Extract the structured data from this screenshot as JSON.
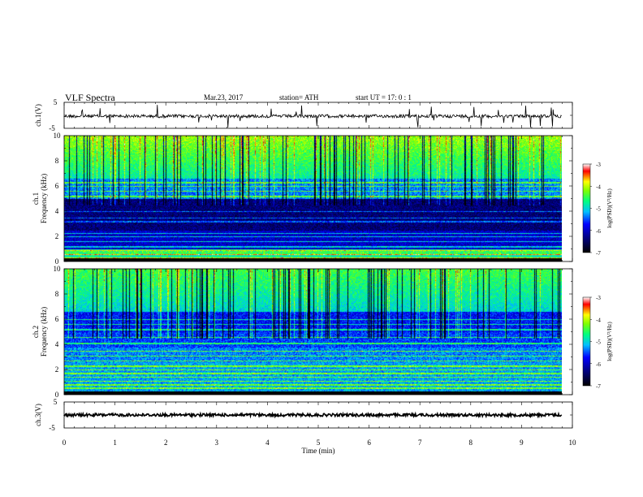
{
  "header": {
    "title": "VLF  Spectra",
    "date": "Mar.23, 2017",
    "station": "station= ATH",
    "start": "start  UT  =    17: 0   : 1"
  },
  "chart_data": [
    {
      "type": "line",
      "name": "ch1-waveform",
      "ylabel": "ch.1(V)",
      "ylim": [
        -5,
        5
      ],
      "yticks": [
        "5",
        "-5"
      ],
      "xlim": [
        0,
        10
      ],
      "baseline": 0
    },
    {
      "type": "heatmap",
      "name": "ch1-spectrogram",
      "ylabel": "ch.1\nFrequency  (kHz)",
      "ylabel_line1": "ch.1",
      "ylabel_line2": "Frequency  (kHz)",
      "ylim": [
        0,
        10
      ],
      "yticks": [
        "0",
        "2",
        "4",
        "6",
        "8",
        "10"
      ],
      "xlim": [
        0,
        10
      ],
      "colorbar": {
        "label": "log(PSD)(V²/Hz)",
        "range": [
          -7,
          -3
        ],
        "ticks": [
          "-3",
          "-4",
          "-5",
          "-6",
          "-7"
        ]
      }
    },
    {
      "type": "heatmap",
      "name": "ch2-spectrogram",
      "ylabel_line1": "ch.2",
      "ylabel_line2": "Frequency  (kHz)",
      "ylim": [
        0,
        10
      ],
      "yticks": [
        "0",
        "2",
        "4",
        "6",
        "8",
        "10"
      ],
      "xlim": [
        0,
        10
      ],
      "colorbar": {
        "label": "log(PSD)(V²/Hz)",
        "range": [
          -7,
          -3
        ],
        "ticks": [
          "-3",
          "-4",
          "-5",
          "-6",
          "-7"
        ]
      }
    },
    {
      "type": "line",
      "name": "ch3-waveform",
      "ylabel": "ch.3(V)",
      "ylim": [
        -5,
        5
      ],
      "yticks": [
        "5",
        "-5"
      ],
      "xlim": [
        0,
        10
      ],
      "baseline": 0
    }
  ],
  "xaxis": {
    "label": "Time  (min)",
    "ticks": [
      "0",
      "1",
      "2",
      "3",
      "4",
      "5",
      "6",
      "7",
      "8",
      "9",
      "10"
    ]
  },
  "colors": {
    "cmap": [
      "#000000",
      "#00008b",
      "#0000ff",
      "#00bfff",
      "#00ff7f",
      "#7fff00",
      "#ffff00",
      "#ff0000",
      "#ffffff"
    ]
  }
}
